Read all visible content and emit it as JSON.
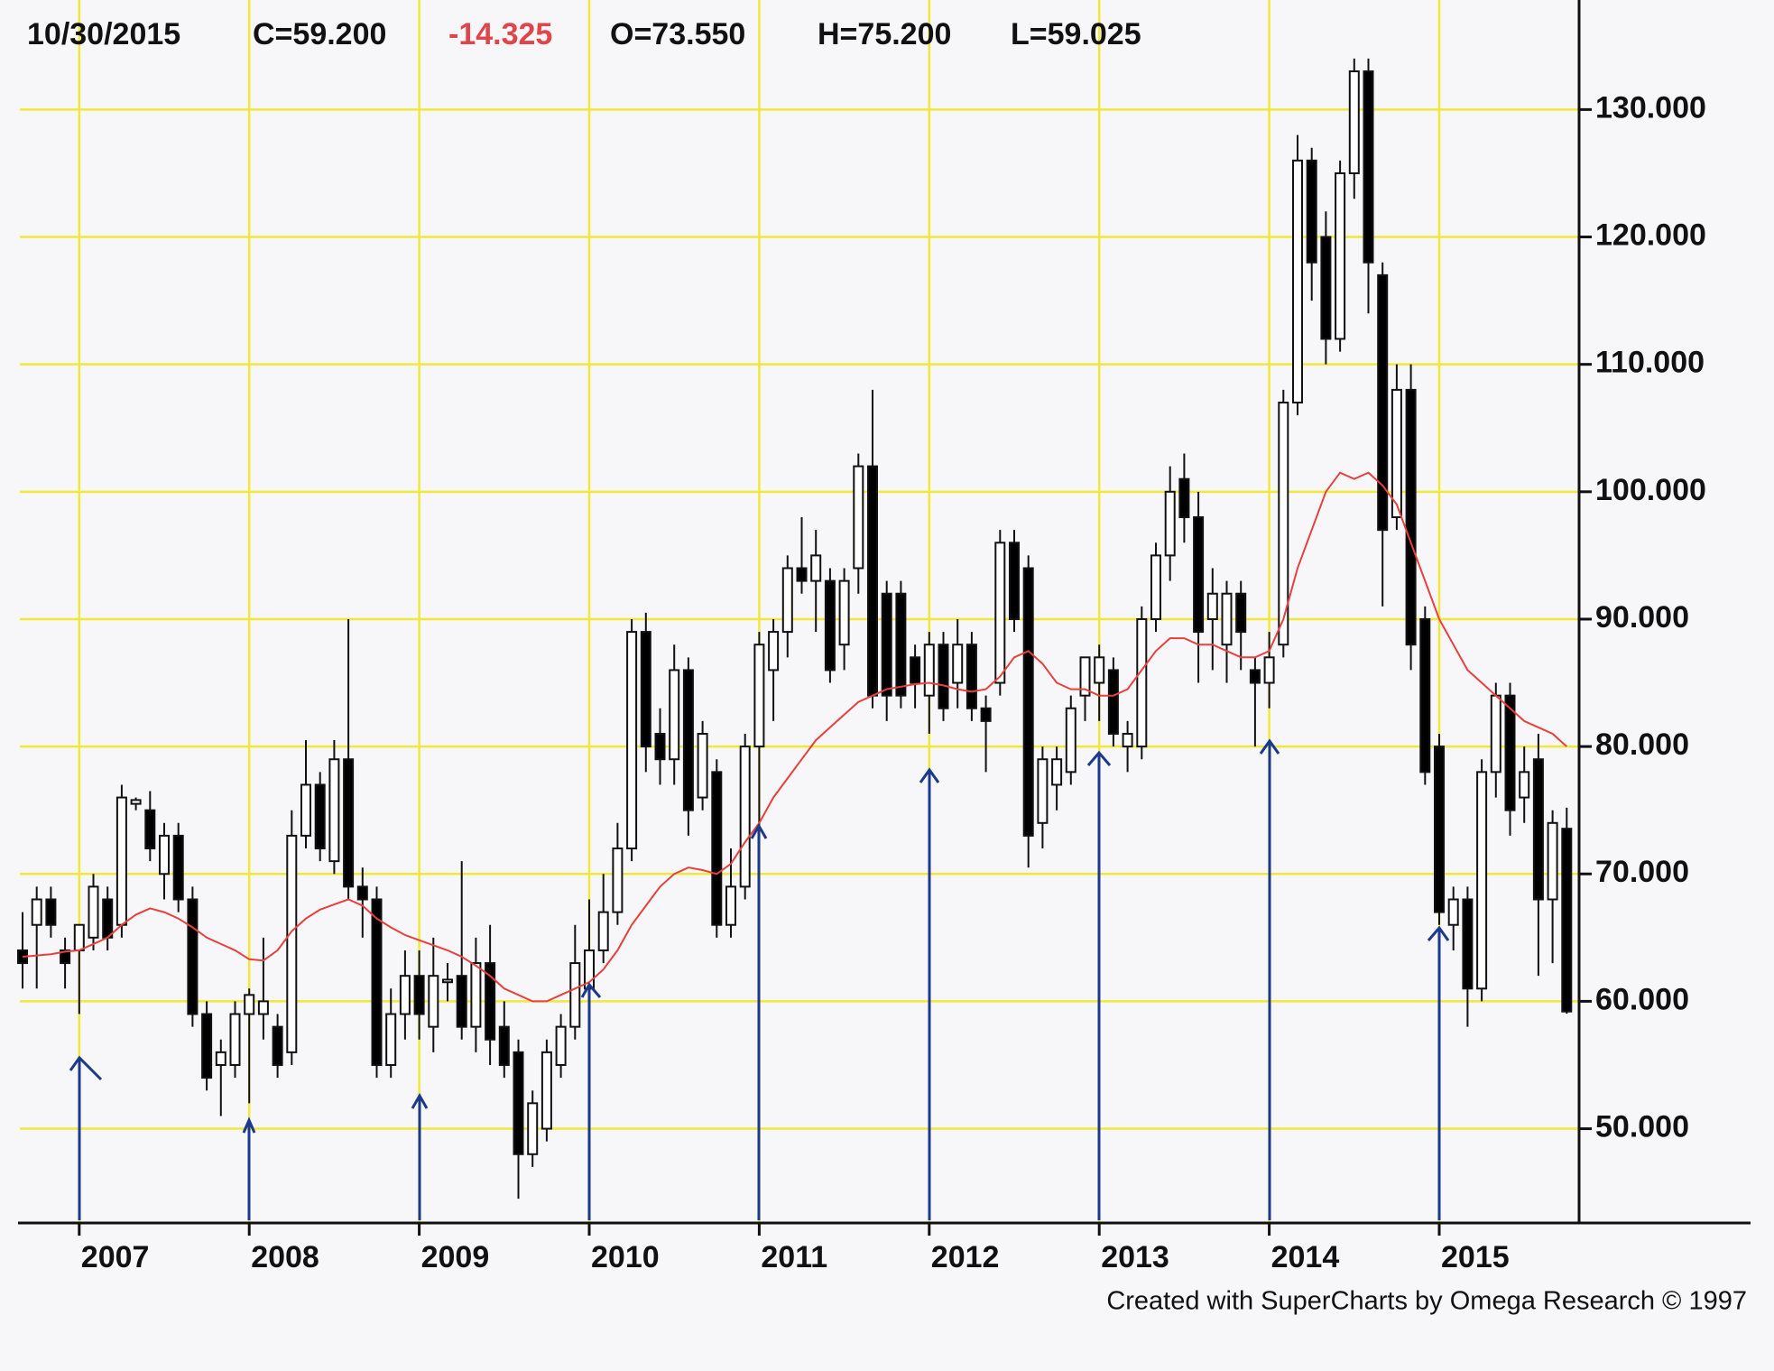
{
  "chart_data": {
    "type": "candlestick",
    "header": {
      "date": "10/30/2015",
      "close": "C=59.200",
      "change": "-14.325",
      "open": "O=73.550",
      "high": "H=75.200",
      "low": "L=59.025"
    },
    "footer": "Created with SuperCharts by Omega Research © 1997",
    "categories": [
      null,
      null,
      null,
      null,
      "2007",
      null,
      null,
      null,
      null,
      null,
      null,
      null,
      null,
      null,
      null,
      null,
      "2008",
      null,
      null,
      null,
      null,
      null,
      null,
      null,
      null,
      null,
      null,
      null,
      "2009",
      null,
      null,
      null,
      null,
      null,
      null,
      null,
      null,
      null,
      null,
      null,
      "2010",
      null,
      null,
      null,
      null,
      null,
      null,
      null,
      null,
      null,
      null,
      null,
      "2011",
      null,
      null,
      null,
      null,
      null,
      null,
      null,
      null,
      null,
      null,
      null,
      "2012",
      null,
      null,
      null,
      null,
      null,
      null,
      null,
      null,
      null,
      null,
      null,
      "2013",
      null,
      null,
      null,
      null,
      null,
      null,
      null,
      null,
      null,
      null,
      null,
      "2014",
      null,
      null,
      null,
      null,
      null,
      null,
      null,
      null,
      null,
      null,
      null,
      "2015",
      null,
      null,
      null,
      null,
      null,
      null,
      null,
      null,
      null
    ],
    "open": [
      64,
      66,
      68,
      64,
      64,
      65,
      68,
      66,
      75.5,
      75,
      70,
      73,
      68,
      59,
      55,
      55,
      59,
      59,
      58,
      56,
      73,
      77,
      71,
      79,
      69,
      68,
      55,
      59,
      62,
      58,
      61.5,
      62,
      58,
      63,
      58,
      56,
      48,
      50,
      55,
      58,
      61,
      64,
      67,
      72,
      89,
      81,
      79,
      86,
      76,
      78,
      66,
      69,
      80,
      86,
      89,
      94,
      93,
      93,
      88,
      94,
      102,
      92,
      92,
      87,
      84,
      88,
      85,
      88,
      83,
      85,
      96,
      94,
      74,
      77,
      78,
      84,
      85,
      86,
      80,
      80,
      90,
      95,
      101,
      98,
      90,
      88,
      92,
      86,
      85,
      88,
      107,
      126,
      120,
      112,
      125,
      133,
      117,
      98,
      108,
      90,
      80,
      66,
      68,
      61,
      78,
      84,
      76,
      79,
      68,
      73.55
    ],
    "high": [
      67,
      69,
      69,
      65,
      66,
      70,
      69,
      77,
      76,
      76.5,
      74,
      74,
      69,
      60,
      57,
      60,
      61,
      65,
      59,
      75,
      80.5,
      78,
      80.5,
      90,
      70.5,
      69,
      61,
      64,
      64,
      65,
      63,
      71,
      65,
      66,
      60,
      57,
      53,
      57,
      59,
      66,
      68,
      70,
      74,
      90,
      90.5,
      83,
      88,
      87,
      82,
      79,
      72,
      81,
      89,
      90,
      95,
      98,
      97,
      94,
      94,
      103,
      108,
      93,
      93,
      88,
      89,
      89,
      90,
      89,
      84,
      97,
      97,
      95,
      80,
      80,
      84,
      87,
      88,
      87,
      82,
      91,
      96,
      102,
      103,
      100,
      94,
      93,
      93,
      87,
      89,
      108,
      128,
      127,
      122,
      126,
      134,
      134,
      118,
      110,
      110,
      91,
      81,
      69,
      69,
      79,
      85,
      85,
      80,
      81,
      75,
      75.2
    ],
    "low": [
      61,
      61,
      65,
      61,
      59,
      64,
      64,
      65,
      75,
      71,
      68,
      67,
      58,
      53,
      51,
      54,
      52,
      57,
      54,
      55,
      72,
      71,
      70,
      68,
      65,
      54,
      54,
      57,
      57,
      56,
      60,
      57,
      56,
      55,
      54,
      44.5,
      47,
      49,
      54,
      57,
      60,
      63,
      66,
      71,
      78,
      77,
      77,
      73,
      75,
      65,
      65,
      68,
      73,
      82,
      87,
      92,
      89,
      85,
      86,
      92,
      83,
      82,
      83,
      83,
      81,
      82,
      83,
      82,
      78,
      84,
      89,
      70.5,
      72,
      75,
      77,
      82,
      82,
      80,
      78,
      79,
      89,
      93,
      96,
      85,
      86,
      85,
      86,
      80,
      83,
      87,
      106,
      115,
      110,
      111,
      123,
      114,
      91,
      97,
      86,
      77,
      66,
      64,
      58,
      60,
      76,
      73,
      74,
      62,
      63,
      59.025
    ],
    "close": [
      63,
      68,
      66,
      63,
      66,
      69,
      65,
      76,
      75.8,
      72,
      73,
      68,
      59,
      54,
      56,
      59,
      60.5,
      60,
      55,
      73,
      77,
      72,
      79,
      69,
      68,
      55,
      59,
      62,
      59,
      62,
      61.7,
      58,
      63,
      57,
      55,
      48,
      52,
      56,
      58,
      63,
      64,
      67,
      72,
      89,
      80,
      79,
      86,
      75,
      81,
      66,
      69,
      80,
      88,
      89,
      94,
      93,
      95,
      86,
      93,
      102,
      84,
      84,
      84,
      85,
      88,
      83,
      88,
      83,
      82,
      96,
      90,
      73,
      79,
      79,
      83,
      87,
      87,
      81,
      81,
      90,
      95,
      100,
      98,
      89,
      92,
      92,
      89,
      85,
      87,
      107,
      126,
      118,
      112,
      125,
      133,
      118,
      97,
      108,
      88,
      78,
      67,
      68,
      61,
      78,
      84,
      75,
      78,
      68,
      74,
      59.2
    ],
    "moving_average_values": [
      63.5,
      63.6,
      63.7,
      63.9,
      64,
      64.5,
      65,
      66,
      66.8,
      67.3,
      67,
      66.5,
      65.8,
      65,
      64.5,
      64,
      63.3,
      63.2,
      64,
      65.5,
      66.5,
      67.2,
      67.6,
      68,
      67.5,
      66.5,
      65.8,
      65.2,
      64.8,
      64.4,
      64,
      63.5,
      62.8,
      62,
      61,
      60.5,
      60,
      60,
      60.5,
      61,
      61.5,
      62.5,
      64,
      66,
      67.5,
      69,
      70,
      70.5,
      70.3,
      70,
      70.8,
      72.5,
      74,
      76,
      77.5,
      79,
      80.5,
      81.5,
      82.5,
      83.5,
      84,
      84.5,
      84.7,
      84.9,
      85,
      84.8,
      84.5,
      84.3,
      84.5,
      85.5,
      87,
      87.5,
      86.5,
      85,
      84.5,
      84.5,
      84,
      84,
      84.5,
      86,
      87.5,
      88.5,
      88.5,
      88,
      88,
      87.5,
      87,
      87,
      87.5,
      90,
      94,
      97,
      100,
      101.5,
      101,
      101.5,
      100.5,
      99,
      96,
      93,
      90,
      88,
      86,
      85,
      84,
      83,
      82,
      81.5,
      81,
      80
    ],
    "moving_average_color": "#e8403c",
    "up_color": "#ffffff",
    "down_color": "#000000",
    "grid_color": "#f2e83a",
    "grid": true,
    "ylim": [
      42.6,
      138.6
    ],
    "yticks": [
      {
        "value": 50,
        "label": "50.000"
      },
      {
        "value": 60,
        "label": "60.000"
      },
      {
        "value": 70,
        "label": "70.000"
      },
      {
        "value": 80,
        "label": "80.000"
      },
      {
        "value": 90,
        "label": "90.000"
      },
      {
        "value": 100,
        "label": "100.000"
      },
      {
        "value": 110,
        "label": "110.000"
      },
      {
        "value": 120,
        "label": "120.000"
      },
      {
        "value": 130,
        "label": "130.000"
      }
    ]
  }
}
